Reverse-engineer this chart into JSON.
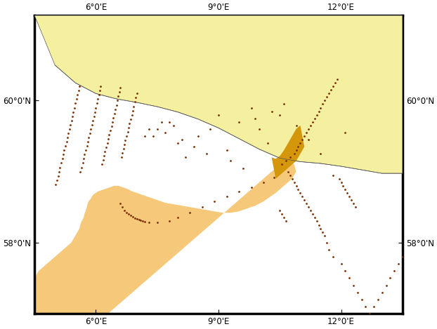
{
  "extent_lon": [
    4.5,
    13.5
  ],
  "extent_lat": [
    57.0,
    61.2
  ],
  "lon_ticks": [
    6.0,
    9.0,
    12.0
  ],
  "lat_ticks": [
    58.0,
    60.0
  ],
  "land_color": "#F5EFA0",
  "sea_color": "#FFFFFF",
  "ns4_outer_color": "#F5C87A",
  "ns4_inner_color": "#D4960A",
  "dot_color": "#7B2D00",
  "dot_size": 4,
  "border_color": "#000000",
  "coastline_color": "#555555",
  "coastline_linewidth": 0.5,
  "tick_fontsize": 8.5,
  "border_linewidth": 2.5,
  "norway_coast_lon": [
    5.02,
    5.08,
    5.15,
    5.22,
    5.3,
    5.38,
    5.42,
    5.48,
    5.52,
    5.55,
    5.6,
    5.65,
    5.68,
    5.7,
    5.72,
    5.75,
    5.78,
    5.8,
    5.82,
    5.85,
    5.88,
    5.9,
    5.95,
    6.0,
    6.05,
    6.1,
    6.15,
    6.2,
    6.25,
    6.3,
    6.35,
    6.4,
    6.45,
    6.5,
    6.52,
    6.55,
    6.57,
    6.6,
    6.62,
    6.65,
    6.68,
    6.7,
    6.72,
    6.75,
    6.78,
    6.8,
    6.82,
    6.85,
    6.88,
    6.9,
    6.92,
    6.95,
    6.98,
    7.0,
    7.02,
    7.05,
    7.1,
    7.15,
    7.2,
    7.25,
    7.3,
    7.35,
    7.4,
    7.45,
    7.5,
    7.52,
    7.55,
    7.6,
    7.65,
    7.7,
    7.75,
    7.8,
    7.85,
    7.9,
    7.95,
    8.0,
    8.05,
    8.1,
    8.15,
    8.2,
    8.25,
    8.3,
    8.35,
    8.4,
    8.45,
    8.5,
    8.55,
    8.6,
    8.65,
    8.7,
    8.72,
    8.75,
    8.78,
    8.8,
    8.82,
    8.85,
    8.88,
    8.9,
    8.92,
    8.95,
    8.98,
    9.0,
    9.02,
    9.05,
    9.08,
    9.1,
    9.12,
    9.15,
    9.18,
    9.2,
    9.22,
    9.25,
    9.28,
    9.3,
    9.32,
    9.35,
    9.38,
    9.4,
    9.42,
    9.45,
    9.48,
    9.5,
    9.52,
    9.55,
    9.6,
    9.65,
    9.68,
    9.7,
    9.72,
    9.75,
    9.78,
    9.8,
    9.85,
    9.9,
    9.95,
    10.0,
    10.05,
    10.1,
    10.15,
    10.2,
    10.25,
    10.3,
    10.35,
    10.4,
    10.45,
    10.5,
    10.55,
    10.6,
    10.65,
    10.7,
    10.75,
    10.8,
    10.85,
    10.9,
    10.95,
    11.0,
    11.05,
    11.1,
    11.15,
    11.2,
    11.25,
    11.3,
    11.35,
    11.4,
    11.45,
    11.5,
    11.55,
    11.6,
    11.65,
    11.7,
    11.75,
    11.8,
    11.85,
    11.9,
    11.95,
    12.0,
    12.05,
    12.1,
    12.15,
    12.2,
    12.25,
    12.3,
    12.35,
    12.4,
    12.45,
    12.5,
    12.55,
    12.6,
    12.65,
    12.7,
    12.75,
    12.8,
    12.85,
    12.9,
    12.95,
    13.0,
    13.05,
    13.1,
    13.15,
    13.2,
    13.25,
    13.3,
    13.35,
    13.4,
    13.45,
    13.5
  ],
  "dot_lons": [
    5.02,
    5.05,
    5.08,
    5.1,
    5.12,
    5.15,
    5.18,
    5.2,
    5.22,
    5.25,
    5.28,
    5.3,
    5.33,
    5.35,
    5.38,
    5.4,
    5.42,
    5.45,
    5.48,
    5.5,
    5.52,
    5.55,
    5.58,
    5.6,
    5.62,
    5.65,
    5.68,
    5.7,
    5.72,
    5.75,
    5.78,
    5.8,
    5.82,
    5.85,
    5.88,
    5.9,
    5.92,
    5.95,
    5.98,
    6.0,
    6.02,
    6.05,
    6.08,
    6.1,
    6.12,
    6.15,
    6.18,
    6.2,
    6.22,
    6.25,
    6.28,
    6.3,
    6.32,
    6.35,
    6.38,
    6.4,
    6.42,
    6.45,
    6.48,
    6.5,
    6.52,
    6.55,
    6.58,
    6.6,
    6.62,
    6.65,
    6.68,
    6.7,
    6.72,
    6.75,
    6.78,
    6.8,
    6.82,
    6.85,
    6.88,
    6.9,
    6.92,
    6.95,
    6.98,
    7.0,
    7.2,
    7.5,
    7.8,
    8.0,
    8.2,
    8.5,
    8.8,
    9.0,
    9.2,
    9.5,
    9.8,
    10.0,
    10.2,
    10.5,
    6.6,
    6.65,
    6.7,
    6.75,
    6.8,
    6.85,
    6.9,
    6.95,
    7.0,
    7.05,
    7.1,
    7.15,
    7.2,
    7.3,
    7.5,
    7.8,
    8.0,
    8.3,
    8.6,
    8.9,
    9.2,
    9.5,
    9.8,
    10.1,
    10.35,
    10.55,
    10.65,
    10.75,
    10.85,
    10.9,
    10.95,
    11.0,
    11.05,
    11.1,
    11.15,
    11.2,
    11.25,
    11.3,
    11.35,
    11.4,
    11.45,
    11.5,
    11.55,
    11.6,
    11.65,
    11.7,
    11.75,
    11.8,
    11.85,
    11.9,
    11.95,
    12.0,
    12.05,
    12.1,
    12.15,
    12.2,
    12.25,
    12.3,
    12.35,
    10.5,
    10.55,
    10.6,
    10.65,
    10.7,
    10.75,
    10.8,
    10.85,
    10.9,
    10.95,
    11.0,
    11.05,
    11.1,
    11.15,
    11.2,
    11.25,
    11.3,
    11.35,
    11.4,
    11.45,
    11.5,
    11.55,
    11.6,
    11.65,
    11.7,
    11.8,
    12.0,
    12.1,
    12.2,
    12.3,
    12.4,
    12.5,
    12.6,
    12.7,
    12.8,
    12.9,
    13.0,
    13.1,
    13.2,
    13.3,
    13.4,
    13.5,
    7.3,
    7.4,
    7.6,
    7.7,
    7.9,
    8.1,
    8.4,
    8.7,
    9.3,
    9.6,
    9.9,
    10.3,
    10.6,
    10.9,
    11.2,
    11.5,
    11.8,
    12.1
  ],
  "dot_lats": [
    58.82,
    58.88,
    58.94,
    59.0,
    59.06,
    59.12,
    59.18,
    59.24,
    59.3,
    59.36,
    59.42,
    59.48,
    59.54,
    59.6,
    59.66,
    59.72,
    59.78,
    59.84,
    59.9,
    59.96,
    60.02,
    60.08,
    60.14,
    60.2,
    59.0,
    59.06,
    59.12,
    59.18,
    59.24,
    59.3,
    59.36,
    59.42,
    59.48,
    59.54,
    59.6,
    59.66,
    59.72,
    59.78,
    59.84,
    59.9,
    59.96,
    60.02,
    60.08,
    60.14,
    60.2,
    59.1,
    59.16,
    59.22,
    59.28,
    59.34,
    59.4,
    59.46,
    59.52,
    59.58,
    59.64,
    59.7,
    59.76,
    59.82,
    59.88,
    59.94,
    60.0,
    60.06,
    60.12,
    60.18,
    59.2,
    59.26,
    59.32,
    59.38,
    59.44,
    59.5,
    59.56,
    59.62,
    59.68,
    59.74,
    59.8,
    59.86,
    59.92,
    59.98,
    60.04,
    60.1,
    59.5,
    59.6,
    59.7,
    59.4,
    59.2,
    59.5,
    59.6,
    59.8,
    59.3,
    59.7,
    59.9,
    59.6,
    59.4,
    59.8,
    58.55,
    58.5,
    58.45,
    58.42,
    58.4,
    58.38,
    58.36,
    58.34,
    58.33,
    58.32,
    58.31,
    58.3,
    58.29,
    58.28,
    58.28,
    58.3,
    58.35,
    58.42,
    58.5,
    58.58,
    58.65,
    58.72,
    58.78,
    58.85,
    58.92,
    59.1,
    59.15,
    59.2,
    59.25,
    59.3,
    59.35,
    59.4,
    59.45,
    59.5,
    59.55,
    59.6,
    59.65,
    59.7,
    59.75,
    59.8,
    59.85,
    59.9,
    59.95,
    60.0,
    60.05,
    60.1,
    60.15,
    60.2,
    60.25,
    60.3,
    58.9,
    58.85,
    58.8,
    58.75,
    58.7,
    58.65,
    58.6,
    58.55,
    58.5,
    58.45,
    58.4,
    58.35,
    58.3,
    59.0,
    58.95,
    58.9,
    58.85,
    58.8,
    58.75,
    58.7,
    58.65,
    58.6,
    58.55,
    58.5,
    58.45,
    58.4,
    58.35,
    58.3,
    58.25,
    58.2,
    58.15,
    58.1,
    58.0,
    57.9,
    57.8,
    57.7,
    57.6,
    57.5,
    57.4,
    57.3,
    57.2,
    57.1,
    57.0,
    57.1,
    57.2,
    57.3,
    57.4,
    57.5,
    57.6,
    57.7,
    57.8,
    59.6,
    59.5,
    59.7,
    59.55,
    59.65,
    59.45,
    59.35,
    59.25,
    59.15,
    59.05,
    59.75,
    59.85,
    59.95,
    59.65,
    59.45,
    59.25,
    58.95,
    59.55
  ]
}
